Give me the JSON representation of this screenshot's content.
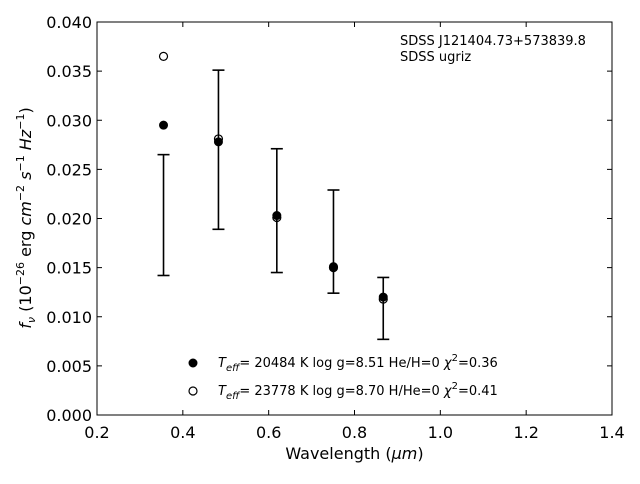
{
  "chart_data": {
    "type": "scatter",
    "title": "",
    "xlabel": "Wavelength (μm)",
    "xlabel_parts": {
      "text": "Wavelength (",
      "unit": "μm",
      "close": ")"
    },
    "ylabel": "f_ν (10^-26 erg cm^-2 s^-1 Hz^-1)",
    "ylabel_parts": {
      "f": "f",
      "nu": "ν",
      "open": " (10",
      "exp26": "−26",
      "erg": " erg ",
      "cm": "cm",
      "expm2": "−2",
      "s": "s",
      "expm1a": "−1",
      "hz": "Hz",
      "expm1b": "−1",
      "close": ")"
    },
    "xlim": [
      0.2,
      1.4
    ],
    "ylim": [
      0.0,
      0.04
    ],
    "xticks": [
      "0.2",
      "0.4",
      "0.6",
      "0.8",
      "1.0",
      "1.2",
      "1.4"
    ],
    "xtick_values": [
      0.2,
      0.4,
      0.6,
      0.8,
      1.0,
      1.2,
      1.4
    ],
    "yticks": [
      "0.000",
      "0.005",
      "0.010",
      "0.015",
      "0.020",
      "0.025",
      "0.030",
      "0.035",
      "0.040"
    ],
    "ytick_values": [
      0.0,
      0.005,
      0.01,
      0.015,
      0.02,
      0.025,
      0.03,
      0.035,
      0.04
    ],
    "grid": false,
    "annotation": [
      "SDSS J121404.73+573839.8",
      "SDSS ugriz"
    ],
    "observed": {
      "x": [
        0.355,
        0.483,
        0.619,
        0.751,
        0.867
      ],
      "y_low": [
        0.0142,
        0.0189,
        0.0145,
        0.0124,
        0.0077
      ],
      "y_high": [
        0.0265,
        0.0351,
        0.0271,
        0.0229,
        0.014
      ]
    },
    "series": [
      {
        "label_parts": {
          "t": "T",
          "eff": "eff",
          "rest": "= 20484 K  log g=8.51  He/H=0  ",
          "chi": "χ",
          "two": "2",
          "tail": "=0.36"
        },
        "marker": "filled",
        "x": [
          0.355,
          0.483,
          0.619,
          0.751,
          0.867
        ],
        "y": [
          0.0295,
          0.0278,
          0.0203,
          0.0151,
          0.012
        ]
      },
      {
        "label_parts": {
          "t": "T",
          "eff": "eff",
          "rest": "= 23778 K  log g=8.70  H/He=0  ",
          "chi": "χ",
          "two": "2",
          "tail": "=0.41"
        },
        "marker": "open",
        "x": [
          0.355,
          0.483,
          0.619,
          0.751,
          0.867
        ],
        "y": [
          0.0365,
          0.0281,
          0.0201,
          0.015,
          0.0118
        ]
      }
    ],
    "legend_position": "bottom-center"
  }
}
